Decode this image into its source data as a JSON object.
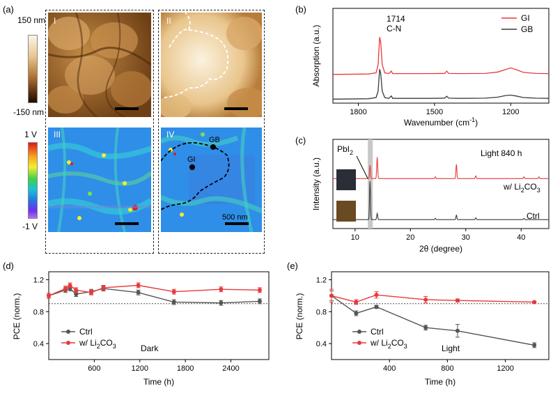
{
  "panel_labels": {
    "a": "(a)",
    "b": "(b)",
    "c": "(c)",
    "d": "(d)",
    "e": "(e)"
  },
  "afm": {
    "height_bar": {
      "max": "150 nm",
      "min": "-150 nm"
    },
    "potential_bar": {
      "max": "1 V",
      "min": "-1 V"
    },
    "tiles": {
      "i": "I",
      "ii": "II",
      "iii": "III",
      "iv": "IV"
    },
    "markers": {
      "gb": "GB",
      "gi": "GI"
    },
    "scale_text": "500 nm",
    "colors": {
      "height_dark": "#2a1706",
      "height_mid": "#a86d2c",
      "height_light": "#f6e9c8",
      "kpfm_bg": "#2f8ee8"
    }
  },
  "chart_data": [
    {
      "id": "b",
      "type": "line",
      "xlabel": "Wavenumber (cm$^{-1}$)",
      "xlabel_main": "Wavenumber (cm",
      "xlabel_sup": "-1",
      "xlabel_end": ")",
      "ylabel": "Absorption (a.u.)",
      "xlim": [
        1900,
        1050
      ],
      "xticks": [
        1800,
        1500,
        1200
      ],
      "xtick_labels": [
        "1800",
        "1500",
        "1200"
      ],
      "annotation": {
        "value": "1714",
        "bond": "C-N"
      },
      "legend": [
        "GI",
        "GB"
      ],
      "series": [
        {
          "name": "GI",
          "color": "#e8393b",
          "offset": 0.58,
          "x": [
            1900,
            1760,
            1730,
            1722,
            1716,
            1712,
            1706,
            1696,
            1680,
            1670,
            1665,
            1600,
            1520,
            1460,
            1452,
            1444,
            1400,
            1300,
            1250,
            1220,
            1200,
            1180,
            1150,
            1100,
            1050
          ],
          "y": [
            0,
            0.005,
            0.02,
            0.12,
            0.46,
            0.4,
            0.12,
            0.02,
            0.01,
            0.04,
            0.01,
            0.01,
            0.01,
            0.012,
            0.04,
            0.012,
            0.01,
            0.012,
            0.03,
            0.06,
            0.08,
            0.06,
            0.025,
            0.012,
            0.01
          ]
        },
        {
          "name": "GB",
          "color": "#3a3a3a",
          "offset": 0.08,
          "x": [
            1900,
            1760,
            1730,
            1722,
            1716,
            1712,
            1706,
            1696,
            1680,
            1670,
            1665,
            1600,
            1520,
            1460,
            1452,
            1444,
            1400,
            1300,
            1250,
            1220,
            1200,
            1180,
            1150,
            1100,
            1050
          ],
          "y": [
            0,
            0.005,
            0.02,
            0.1,
            0.37,
            0.32,
            0.1,
            0.02,
            0.01,
            0.04,
            0.01,
            0.01,
            0.01,
            0.012,
            0.035,
            0.012,
            0.01,
            0.012,
            0.025,
            0.045,
            0.05,
            0.04,
            0.02,
            0.012,
            0.01
          ]
        }
      ]
    },
    {
      "id": "c",
      "type": "line",
      "xlabel": "2θ (degree)",
      "ylabel": "Intensity (a.u.)",
      "xlim": [
        6,
        45
      ],
      "xticks": [
        10,
        20,
        30,
        40
      ],
      "xtick_labels": [
        "10",
        "20",
        "30",
        "40"
      ],
      "annotation": {
        "pbi2_main": "PbI",
        "pbi2_sub": "2",
        "condition": "Light 840 h"
      },
      "labels": {
        "li": "w/ Li",
        "li_sub": "2",
        "li_end": "CO",
        "li_sub2": "3",
        "ctrl": "Ctrl"
      },
      "highlight_range": [
        12.3,
        13.2
      ],
      "series": [
        {
          "name": "w/ Li2CO3",
          "color": "#e8393b",
          "offset": 0.56,
          "peaks": [
            [
              12.7,
              0.15
            ],
            [
              14.0,
              0.24
            ],
            [
              24.5,
              0.02
            ],
            [
              28.3,
              0.16
            ],
            [
              31.8,
              0.03
            ],
            [
              40.5,
              0.02
            ],
            [
              43.2,
              0.02
            ]
          ]
        },
        {
          "name": "Ctrl",
          "color": "#3a3a3a",
          "offset": 0.1,
          "peaks": [
            [
              12.7,
              0.43
            ],
            [
              14.0,
              0.07
            ],
            [
              24.5,
              0.015
            ],
            [
              28.3,
              0.05
            ],
            [
              31.8,
              0.02
            ],
            [
              40.5,
              0.015
            ]
          ]
        }
      ]
    },
    {
      "id": "d",
      "type": "line",
      "xlabel": "Time (h)",
      "ylabel": "PCE (norm.)",
      "xlim": [
        0,
        2900
      ],
      "ylim": [
        0.2,
        1.3
      ],
      "xticks": [
        600,
        1200,
        1800,
        2400
      ],
      "xtick_labels": [
        "600",
        "1200",
        "1800",
        "2400"
      ],
      "yticks": [
        0.4,
        0.8,
        1.2
      ],
      "ytick_labels": [
        "0.4",
        "0.8",
        "1.2"
      ],
      "reference_line": 0.9,
      "condition": "Dark",
      "legend": {
        "ctrl": "Ctrl",
        "li": "w/ Li",
        "li_sub": "2",
        "li_end": "CO",
        "li_sub2": "3"
      },
      "series": [
        {
          "name": "Ctrl",
          "color": "#555555",
          "x": [
            0,
            220,
            280,
            360,
            560,
            720,
            1180,
            1650,
            2270,
            2780
          ],
          "y": [
            1.0,
            1.07,
            1.09,
            1.02,
            1.05,
            1.09,
            1.04,
            0.92,
            0.91,
            0.93
          ],
          "err": [
            0.03,
            0.03,
            0.03,
            0.03,
            0.03,
            0.03,
            0.03,
            0.03,
            0.03,
            0.03
          ]
        },
        {
          "name": "w/ Li2CO3",
          "color": "#e8393b",
          "x": [
            0,
            220,
            280,
            360,
            560,
            720,
            1180,
            1650,
            2270,
            2780
          ],
          "y": [
            1.0,
            1.09,
            1.13,
            1.07,
            1.04,
            1.1,
            1.13,
            1.05,
            1.08,
            1.07
          ],
          "err": [
            0.03,
            0.03,
            0.03,
            0.03,
            0.03,
            0.03,
            0.03,
            0.03,
            0.03,
            0.03
          ]
        }
      ]
    },
    {
      "id": "e",
      "type": "line",
      "xlabel": "Time (h)",
      "ylabel": "PCE (norm.)",
      "xlim": [
        0,
        1500
      ],
      "ylim": [
        0.2,
        1.3
      ],
      "xticks": [
        400,
        800,
        1200
      ],
      "xtick_labels": [
        "400",
        "800",
        "1200"
      ],
      "yticks": [
        0.4,
        0.8,
        1.2
      ],
      "ytick_labels": [
        "0.4",
        "0.8",
        "1.2"
      ],
      "reference_line": 0.9,
      "condition": "Light",
      "legend": {
        "ctrl": "Ctrl",
        "li": "w/ Li",
        "li_sub": "2",
        "li_end": "CO",
        "li_sub2": "3"
      },
      "series": [
        {
          "name": "Ctrl",
          "color": "#555555",
          "x": [
            0,
            170,
            310,
            650,
            870,
            1400
          ],
          "y": [
            1.0,
            0.78,
            0.86,
            0.6,
            0.56,
            0.38
          ],
          "err": [
            0.06,
            0.03,
            0.02,
            0.03,
            0.08,
            0.03
          ]
        },
        {
          "name": "w/ Li2CO3",
          "color": "#e8393b",
          "x": [
            0,
            170,
            310,
            650,
            870,
            1400
          ],
          "y": [
            1.0,
            0.92,
            1.01,
            0.95,
            0.94,
            0.92
          ],
          "err": [
            0.08,
            0.03,
            0.04,
            0.04,
            0.02,
            0.01
          ]
        }
      ]
    }
  ]
}
